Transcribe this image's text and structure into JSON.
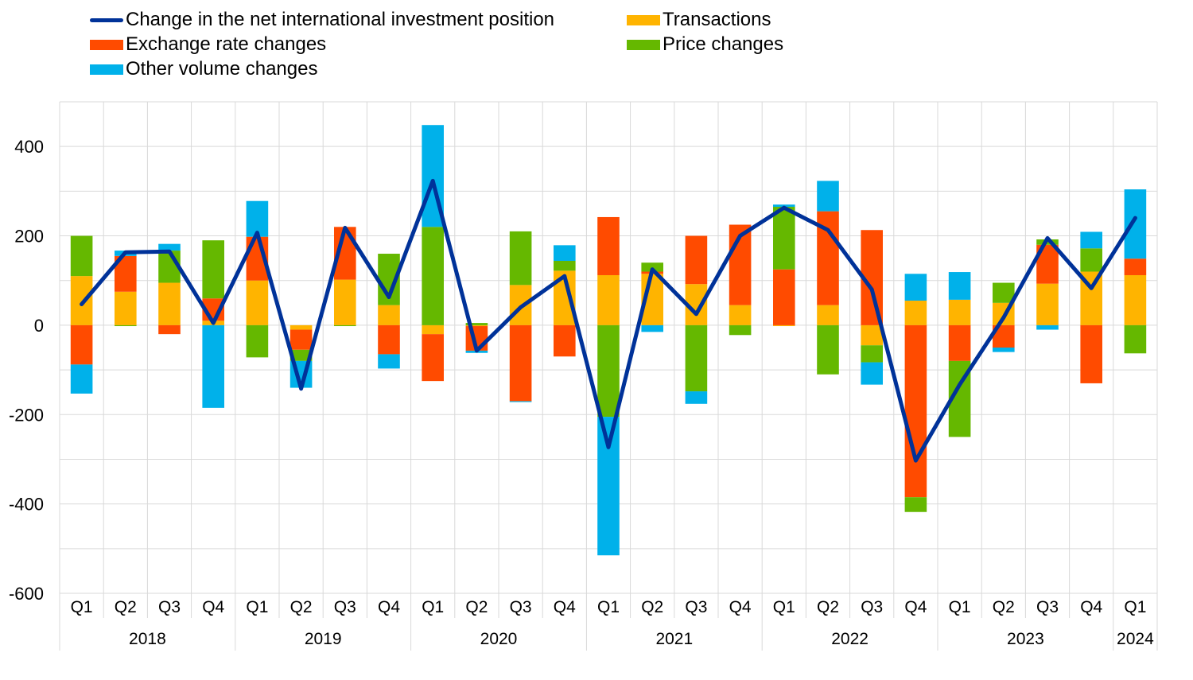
{
  "colors": {
    "net": "#003299",
    "transactions": "#ffb400",
    "exchange": "#ff4b00",
    "price": "#65b800",
    "other": "#00b1ea",
    "grid": "#d9d9d9"
  },
  "chart_data": {
    "type": "bar",
    "stacked": true,
    "title": "",
    "xlabel": "",
    "ylabel": "",
    "ylim": [
      -600,
      500
    ],
    "yticks": [
      -600,
      -400,
      -200,
      0,
      200,
      400
    ],
    "grid": true,
    "legend_position": "top",
    "categories": [
      "Q1",
      "Q2",
      "Q3",
      "Q4",
      "Q1",
      "Q2",
      "Q3",
      "Q4",
      "Q1",
      "Q2",
      "Q3",
      "Q4",
      "Q1",
      "Q2",
      "Q3",
      "Q4",
      "Q1",
      "Q2",
      "Q3",
      "Q4",
      "Q1",
      "Q2",
      "Q3",
      "Q4",
      "Q1"
    ],
    "years": [
      "2018",
      "2019",
      "2020",
      "2021",
      "2022",
      "2023",
      "2024"
    ],
    "year_spans": [
      4,
      4,
      4,
      4,
      4,
      4,
      1
    ],
    "series": [
      {
        "name": "Transactions",
        "key": "transactions",
        "kind": "bar",
        "values": [
          110,
          75,
          95,
          10,
          100,
          -10,
          102,
          45,
          -20,
          -2,
          90,
          122,
          112,
          115,
          92,
          45,
          -2,
          45,
          -45,
          55,
          57,
          50,
          93,
          120,
          112
        ]
      },
      {
        "name": "Exchange rate changes",
        "key": "exchange",
        "kind": "bar",
        "values": [
          -88,
          80,
          -20,
          50,
          98,
          -45,
          118,
          -65,
          -105,
          -55,
          -170,
          -70,
          130,
          5,
          108,
          180,
          125,
          210,
          213,
          -385,
          -80,
          -50,
          87,
          -130,
          37
        ]
      },
      {
        "name": "Price changes",
        "key": "price",
        "kind": "bar",
        "values": [
          90,
          -2,
          72,
          130,
          -72,
          -25,
          -2,
          115,
          220,
          5,
          120,
          22,
          -205,
          20,
          -148,
          -22,
          140,
          -110,
          -38,
          -33,
          -170,
          45,
          12,
          52,
          -63
        ]
      },
      {
        "name": "Other volume changes",
        "key": "other",
        "kind": "bar",
        "values": [
          -65,
          12,
          15,
          -185,
          80,
          -60,
          0,
          -32,
          228,
          -5,
          -2,
          35,
          -310,
          -15,
          -28,
          0,
          5,
          68,
          -50,
          60,
          62,
          -10,
          -10,
          37,
          155
        ]
      },
      {
        "name": "Change in the net international investment position",
        "key": "net",
        "kind": "line",
        "values": [
          47,
          163,
          165,
          5,
          207,
          -142,
          218,
          63,
          323,
          -57,
          40,
          110,
          -273,
          125,
          25,
          200,
          263,
          213,
          80,
          -303,
          -133,
          17,
          195,
          83,
          240
        ]
      }
    ]
  },
  "legend": [
    {
      "key": "net",
      "label": "Change in the net international investment position",
      "kind": "line"
    },
    {
      "key": "transactions",
      "label": "Transactions",
      "kind": "bar"
    },
    {
      "key": "exchange",
      "label": "Exchange rate changes",
      "kind": "bar"
    },
    {
      "key": "price",
      "label": "Price changes",
      "kind": "bar"
    },
    {
      "key": "other",
      "label": "Other volume changes",
      "kind": "bar"
    }
  ]
}
